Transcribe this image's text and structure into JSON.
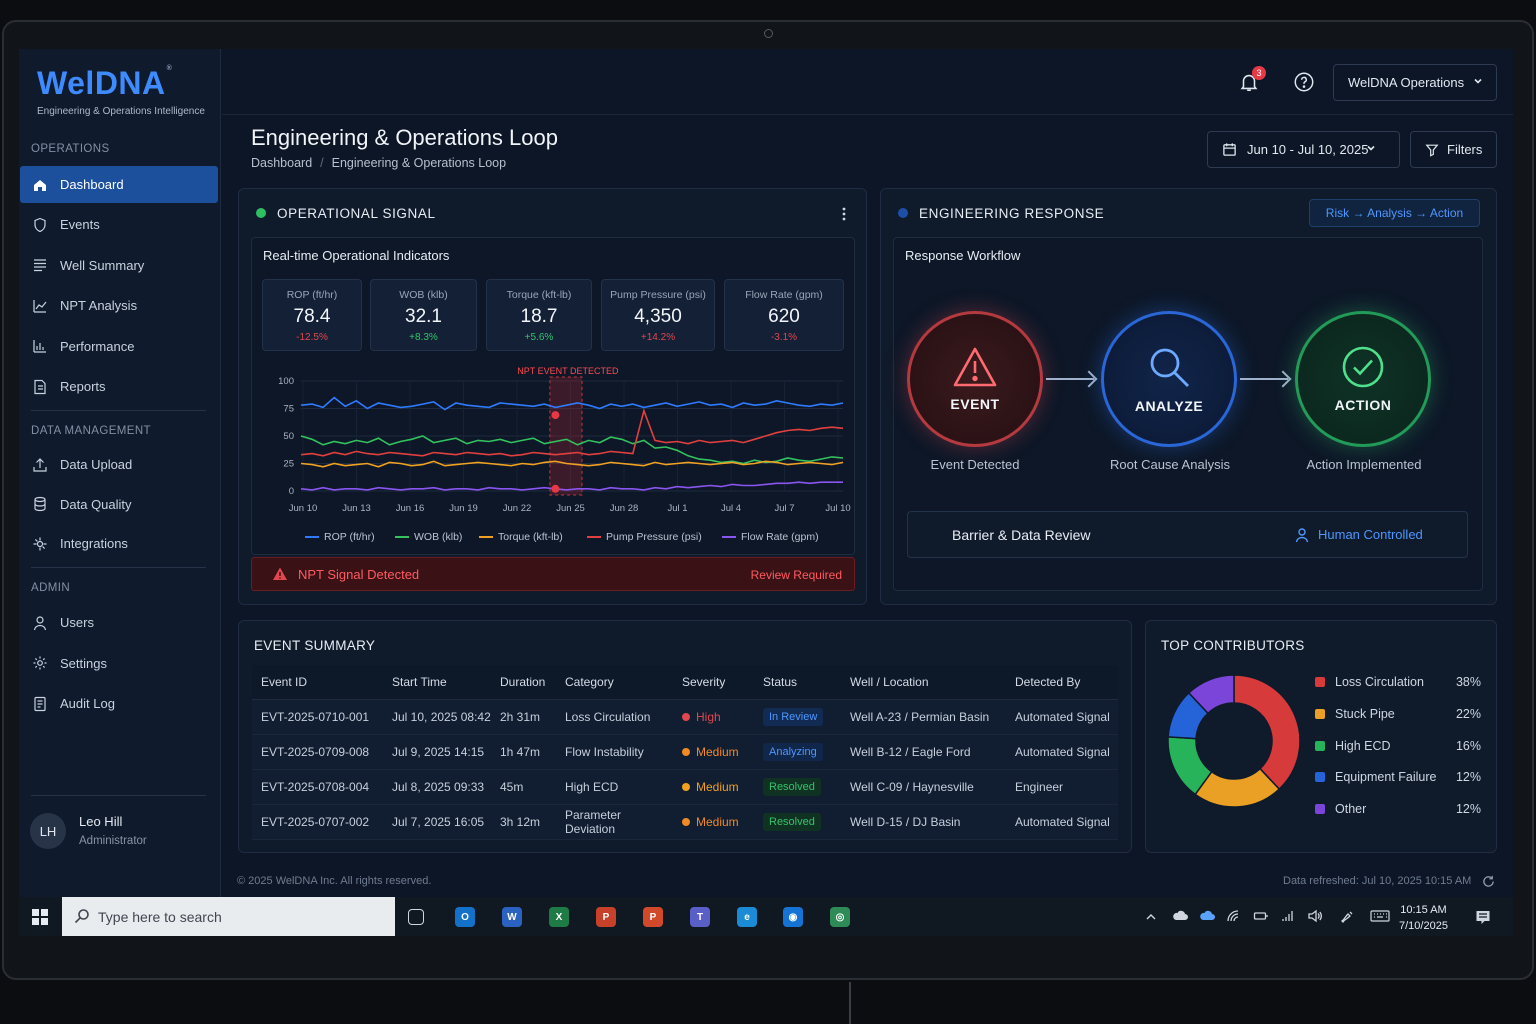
{
  "app": {
    "logo_text": "WelDNA",
    "logo_mark": "®",
    "logo_subtitle": "Engineering & Operations Intelligence"
  },
  "sidebar": {
    "sections": {
      "operations": "OPERATIONS",
      "data_management": "DATA MANAGEMENT",
      "admin": "ADMIN"
    },
    "operations_items": [
      {
        "label": "Dashboard",
        "icon": "home-icon",
        "active": true
      },
      {
        "label": "Events",
        "icon": "shield-icon"
      },
      {
        "label": "Well Summary",
        "icon": "list-icon"
      },
      {
        "label": "NPT Analysis",
        "icon": "line-chart-icon"
      },
      {
        "label": "Performance",
        "icon": "bar-chart-icon"
      },
      {
        "label": "Reports",
        "icon": "document-icon"
      }
    ],
    "data_items": [
      {
        "label": "Data Upload",
        "icon": "upload-icon"
      },
      {
        "label": "Data Quality",
        "icon": "database-icon"
      },
      {
        "label": "Integrations",
        "icon": "integration-icon"
      }
    ],
    "admin_items": [
      {
        "label": "Users",
        "icon": "user-icon"
      },
      {
        "label": "Settings",
        "icon": "gear-icon"
      },
      {
        "label": "Audit Log",
        "icon": "log-icon"
      }
    ],
    "user": {
      "initials": "LH",
      "name": "Leo Hill",
      "role": "Administrator"
    }
  },
  "header": {
    "notification_count": "3",
    "org_select": "WelDNA Operations",
    "page_title": "Engineering & Operations Loop",
    "breadcrumb": [
      "Dashboard",
      "Engineering & Operations Loop"
    ],
    "date_range": "Jun 10 - Jul 10, 2025",
    "filters_label": "Filters"
  },
  "operational_signal": {
    "title": "OPERATIONAL SIGNAL",
    "status_color": "#2fbf63",
    "subtitle": "Real-time Operational Indicators",
    "kpis": [
      {
        "label": "ROP (ft/hr)",
        "value": "78.4",
        "change": "-12.5%",
        "trend": "down"
      },
      {
        "label": "WOB (klb)",
        "value": "32.1",
        "change": "+8.3%",
        "trend": "up"
      },
      {
        "label": "Torque (kft-lb)",
        "value": "18.7",
        "change": "+5.6%",
        "trend": "up"
      },
      {
        "label": "Pump Pressure (psi)",
        "value": "4,350",
        "change": "+14.2%",
        "trend": "down"
      },
      {
        "label": "Flow Rate (gpm)",
        "value": "620",
        "change": "-3.1%",
        "trend": "down"
      }
    ],
    "alert_text": "NPT Signal Detected",
    "alert_action": "Review Required"
  },
  "chart_data": {
    "type": "line",
    "x_labels": [
      "Jun 10",
      "Jun 13",
      "Jun 16",
      "Jun 19",
      "Jun 22",
      "Jun 25",
      "Jun 28",
      "Jul 1",
      "Jul 4",
      "Jul 7",
      "Jul 10"
    ],
    "y_ticks": [
      0,
      25,
      50,
      75,
      100
    ],
    "ylim": [
      0,
      100
    ],
    "grid": true,
    "legend_position": "bottom",
    "annotation": {
      "label": "NPT EVENT DETECTED",
      "x_start": 22.5,
      "x_end": 24.5,
      "marker_x": 23
    },
    "series": [
      {
        "name": "ROP (ft/hr)",
        "color": "#2f7bff",
        "values": [
          78,
          79,
          76,
          85,
          77,
          82,
          75,
          80,
          78,
          76,
          77,
          79,
          81,
          74,
          80,
          78,
          77,
          76,
          80,
          79,
          78,
          77,
          79,
          76,
          78,
          80,
          78,
          75,
          79,
          77,
          79,
          76,
          78,
          80,
          77,
          79,
          81,
          78,
          79,
          76,
          80,
          78,
          79,
          82,
          80,
          78,
          77,
          79,
          78,
          80
        ]
      },
      {
        "name": "WOB (klb)",
        "color": "#34c25f",
        "values": [
          50,
          47,
          42,
          45,
          43,
          46,
          44,
          48,
          42,
          45,
          47,
          50,
          44,
          46,
          48,
          43,
          46,
          45,
          47,
          44,
          46,
          48,
          43,
          45,
          47,
          42,
          46,
          44,
          49,
          47,
          43,
          46,
          39,
          40,
          37,
          32,
          29,
          28,
          26,
          27,
          25,
          28,
          26,
          27,
          30,
          28,
          27,
          29,
          31,
          30
        ]
      },
      {
        "name": "Torque (kft-lb)",
        "color": "#f0a122",
        "values": [
          25,
          24,
          22,
          25,
          23,
          24,
          25,
          22,
          26,
          25,
          23,
          24,
          27,
          23,
          24,
          25,
          26,
          25,
          24,
          23,
          25,
          24,
          26,
          27,
          25,
          24,
          23,
          24,
          26,
          25,
          24,
          23,
          26,
          24,
          25,
          26,
          25,
          24,
          25,
          26,
          24,
          25,
          27,
          26,
          24,
          25,
          26,
          25,
          24,
          26
        ]
      },
      {
        "name": "Pump Pressure (psi)",
        "color": "#e2403f",
        "values": [
          33,
          34,
          32,
          35,
          33,
          36,
          34,
          33,
          35,
          34,
          33,
          32,
          35,
          34,
          33,
          35,
          34,
          33,
          34,
          32,
          33,
          35,
          34,
          33,
          34,
          35,
          33,
          34,
          36,
          35,
          34,
          73,
          46,
          44,
          45,
          43,
          46,
          44,
          45,
          46,
          44,
          47,
          50,
          53,
          55,
          56,
          55,
          57,
          58,
          57
        ]
      },
      {
        "name": "Flow Rate (gpm)",
        "color": "#8a55f0",
        "values": [
          2,
          1,
          3,
          1,
          2,
          2,
          1,
          3,
          2,
          1,
          2,
          2,
          3,
          1,
          2,
          2,
          1,
          3,
          2,
          2,
          1,
          2,
          3,
          2,
          1,
          2,
          2,
          1,
          3,
          2,
          2,
          1,
          3,
          2,
          4,
          3,
          4,
          5,
          4,
          6,
          5,
          5,
          6,
          7,
          7,
          8,
          7,
          8,
          8,
          8
        ]
      }
    ]
  },
  "engineering_response": {
    "title": "ENGINEERING RESPONSE",
    "status_color": "#1e4fa8",
    "flow_pill": "Risk → Analysis → Action",
    "subtitle": "Response Workflow",
    "steps": [
      {
        "label": "EVENT",
        "caption": "Event Detected",
        "color": "#e0474f",
        "icon": "warning-icon"
      },
      {
        "label": "ANALYZE",
        "caption": "Root Cause Analysis",
        "color": "#2f7bff",
        "icon": "magnifier-icon"
      },
      {
        "label": "ACTION",
        "caption": "Action Implemented",
        "color": "#35c26a",
        "icon": "check-circle-icon"
      }
    ],
    "barrier_label": "Barrier & Data Review",
    "control_label": "Human Controlled"
  },
  "event_summary": {
    "title": "EVENT SUMMARY",
    "columns": [
      "Event ID",
      "Start Time",
      "Duration",
      "Category",
      "Severity",
      "Status",
      "Well / Location",
      "Detected By"
    ],
    "rows": [
      {
        "id": "EVT-2025-0710-001",
        "start": "Jul 10, 2025 08:42",
        "duration": "2h 31m",
        "category": "Loss Circulation",
        "severity": "High",
        "severity_color": "#e0474f",
        "status": "In Review",
        "status_kind": "review",
        "well": "Well A-23 / Permian Basin",
        "detected_by": "Automated Signal"
      },
      {
        "id": "EVT-2025-0709-008",
        "start": "Jul 9, 2025 14:15",
        "duration": "1h 47m",
        "category": "Flow Instability",
        "severity": "Medium",
        "severity_color": "#f08a24",
        "status": "Analyzing",
        "status_kind": "analyz",
        "well": "Well B-12 / Eagle Ford",
        "detected_by": "Automated Signal"
      },
      {
        "id": "EVT-2025-0708-004",
        "start": "Jul 8, 2025 09:33",
        "duration": "45m",
        "category": "High ECD",
        "severity": "Medium",
        "severity_color": "#f0a122",
        "status": "Resolved",
        "status_kind": "res",
        "well": "Well C-09 / Haynesville",
        "detected_by": "Engineer"
      },
      {
        "id": "EVT-2025-0707-002",
        "start": "Jul 7, 2025 16:05",
        "duration": "3h 12m",
        "category": "Parameter Deviation",
        "severity": "Medium",
        "severity_color": "#f08a24",
        "status": "Resolved",
        "status_kind": "res",
        "well": "Well D-15 / DJ Basin",
        "detected_by": "Automated Signal"
      }
    ]
  },
  "top_contributors": {
    "title": "TOP CONTRIBUTORS",
    "chart_type": "donut",
    "items": [
      {
        "label": "Loss Circulation",
        "percent": 38,
        "display": "38%",
        "color": "#d63a3a"
      },
      {
        "label": "Stuck Pipe",
        "percent": 22,
        "display": "22%",
        "color": "#e9a024"
      },
      {
        "label": "High ECD",
        "percent": 16,
        "display": "16%",
        "color": "#27b35a"
      },
      {
        "label": "Equipment Failure",
        "percent": 12,
        "display": "12%",
        "color": "#2563d8"
      },
      {
        "label": "Other",
        "percent": 12,
        "display": "12%",
        "color": "#7a45d8"
      }
    ]
  },
  "footer": {
    "copyright": "© 2025 WelDNA Inc. All rights reserved.",
    "refreshed": "Data refreshed: Jul 10, 2025 10:15 AM"
  },
  "taskbar": {
    "search_placeholder": "Type here to search",
    "apps": [
      {
        "name": "task-view-icon",
        "color": "#101821",
        "glyph": "▯"
      },
      {
        "name": "outlook-icon",
        "color": "#1471c9",
        "glyph": "O"
      },
      {
        "name": "word-icon",
        "color": "#2b62c1",
        "glyph": "W"
      },
      {
        "name": "excel-icon",
        "color": "#1e7b45",
        "glyph": "X"
      },
      {
        "name": "powerpoint-icon",
        "color": "#c7412a",
        "glyph": "P"
      },
      {
        "name": "powerpoint-online-icon",
        "color": "#d2482b",
        "glyph": "P"
      },
      {
        "name": "teams-icon",
        "color": "#5a5fc7",
        "glyph": "T"
      },
      {
        "name": "edge-icon",
        "color": "#1c8bd6",
        "glyph": "e"
      },
      {
        "name": "azure-icon",
        "color": "#1573d6",
        "glyph": "◉"
      },
      {
        "name": "chrome-icon",
        "color": "#2e8b57",
        "glyph": "◎"
      }
    ],
    "time": "10:15 AM",
    "date": "7/10/2025"
  }
}
